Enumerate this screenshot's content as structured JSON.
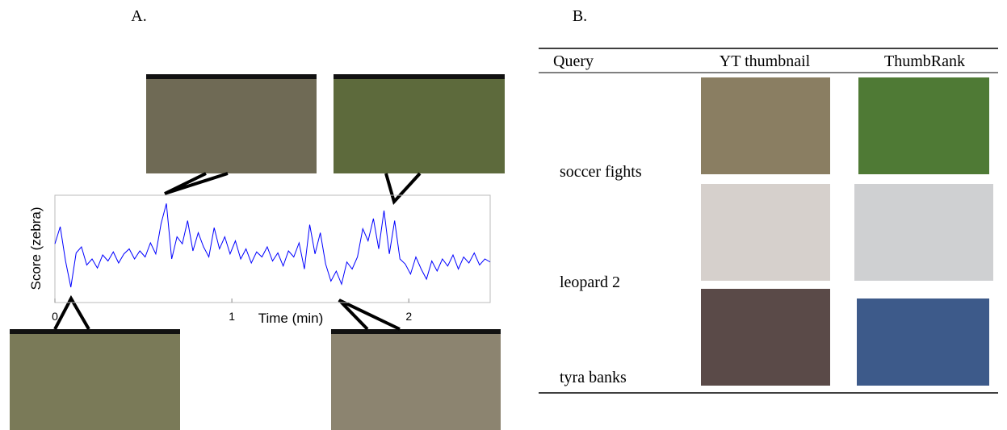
{
  "chart_data": {
    "type": "line",
    "title": "A.",
    "xlabel": "Time (min)",
    "ylabel": "Score (zebra)",
    "x": [
      0,
      0.03,
      0.06,
      0.09,
      0.12,
      0.15,
      0.18,
      0.21,
      0.24,
      0.27,
      0.3,
      0.33,
      0.36,
      0.39,
      0.42,
      0.45,
      0.48,
      0.51,
      0.54,
      0.57,
      0.6,
      0.63,
      0.66,
      0.69,
      0.72,
      0.75,
      0.78,
      0.81,
      0.84,
      0.87,
      0.9,
      0.93,
      0.96,
      0.99,
      1.02,
      1.05,
      1.08,
      1.11,
      1.14,
      1.17,
      1.2,
      1.23,
      1.26,
      1.29,
      1.32,
      1.35,
      1.38,
      1.41,
      1.44,
      1.47,
      1.5,
      1.53,
      1.56,
      1.59,
      1.62,
      1.65,
      1.68,
      1.71,
      1.74,
      1.77,
      1.8,
      1.83,
      1.86,
      1.89,
      1.92,
      1.95,
      1.98,
      2.01,
      2.04,
      2.07,
      2.1,
      2.13,
      2.16,
      2.19,
      2.22,
      2.25,
      2.28,
      2.31,
      2.34,
      2.37,
      2.4,
      2.43,
      2.46
    ],
    "values": [
      0.55,
      0.72,
      0.38,
      0.12,
      0.46,
      0.52,
      0.34,
      0.4,
      0.31,
      0.44,
      0.38,
      0.47,
      0.36,
      0.45,
      0.5,
      0.4,
      0.48,
      0.42,
      0.56,
      0.45,
      0.75,
      0.95,
      0.4,
      0.62,
      0.55,
      0.78,
      0.48,
      0.66,
      0.52,
      0.42,
      0.71,
      0.5,
      0.62,
      0.45,
      0.58,
      0.4,
      0.5,
      0.36,
      0.47,
      0.42,
      0.52,
      0.38,
      0.46,
      0.33,
      0.48,
      0.42,
      0.56,
      0.3,
      0.74,
      0.45,
      0.66,
      0.35,
      0.18,
      0.28,
      0.15,
      0.37,
      0.3,
      0.42,
      0.7,
      0.58,
      0.8,
      0.5,
      0.88,
      0.45,
      0.78,
      0.4,
      0.35,
      0.25,
      0.42,
      0.3,
      0.2,
      0.38,
      0.28,
      0.4,
      0.33,
      0.44,
      0.3,
      0.42,
      0.36,
      0.46,
      0.34,
      0.4,
      0.37
    ],
    "color": "#0000ff",
    "xlim": [
      0,
      2.46
    ],
    "ylim": [
      0,
      1
    ],
    "xticks": [
      0,
      1,
      2
    ]
  },
  "table": {
    "title": "B.",
    "header": [
      "Query",
      "YT thumbnail",
      "ThumbRank"
    ],
    "rows": [
      "soccer fights",
      "leopard 2",
      "tyra banks"
    ]
  }
}
